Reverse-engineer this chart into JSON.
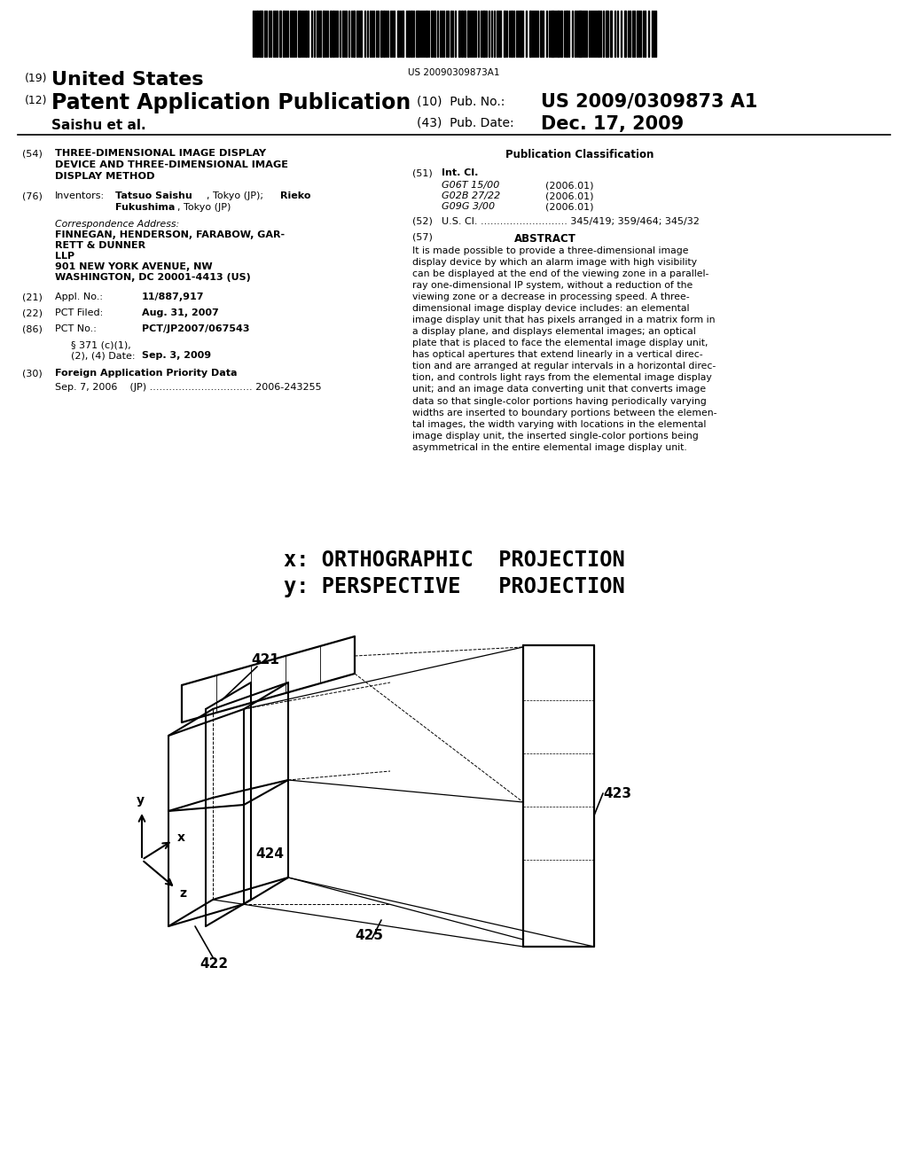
{
  "bg_color": "#ffffff",
  "barcode_text": "US 20090309873A1",
  "diagram_line1": "x: ORTHOGRAPHIC  PROJECTION",
  "diagram_line2": "y: PERSPECTIVE   PROJECTION",
  "label_421": "421",
  "label_422": "422",
  "label_423": "423",
  "label_424": "424",
  "label_425": "425",
  "label_x": "x",
  "label_y": "y",
  "label_z": "z"
}
